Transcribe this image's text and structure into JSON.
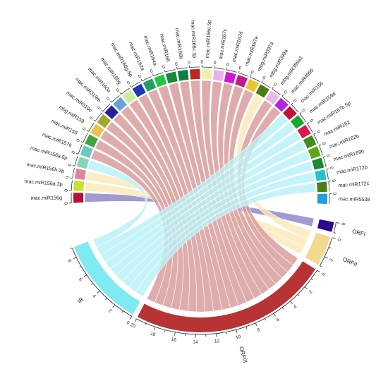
{
  "mirnas": [
    {
      "name": "mac.miR156g",
      "color": "#b51030"
    },
    {
      "name": "mac.miR156a.3p",
      "color": "#c9e033"
    },
    {
      "name": "mac.miR156h.3p",
      "color": "#e0849a"
    },
    {
      "name": "mac.miR156a.5p",
      "color": "#7fd9b7"
    },
    {
      "name": "mac.miR157b",
      "color": "#6fc6c6"
    },
    {
      "name": "mac.miR159",
      "color": "#3fa53f"
    },
    {
      "name": "mbg.miR159",
      "color": "#e8c44a"
    },
    {
      "name": "mac.miR319c",
      "color": "#9faa2c"
    },
    {
      "name": "mac.miR319m",
      "color": "#22229a"
    },
    {
      "name": "mac.miR160a",
      "color": "#6aa0d8"
    },
    {
      "name": "mac.miR160g",
      "color": "#c7ef9a"
    },
    {
      "name": "mac.miR160g.5p",
      "color": "#1f36b8"
    },
    {
      "name": "mac.miR162a",
      "color": "#22a060"
    },
    {
      "name": "mac.miR164a",
      "color": "#23c643"
    },
    {
      "name": "mac.miR166",
      "color": "#178a3a"
    },
    {
      "name": "mac.miR166b",
      "color": "#0e7f43"
    },
    {
      "name": "mac.miR166c.3p",
      "color": "#c0281c"
    },
    {
      "name": "mac.miR166c.5p",
      "color": "#eef2a8"
    },
    {
      "name": "mac.miR167c",
      "color": "#e8b0ee"
    },
    {
      "name": "mac.miR167d",
      "color": "#d415d4"
    },
    {
      "name": "mac.miR167e",
      "color": "#c21a8b"
    },
    {
      "name": "mbg.miR397a",
      "color": "#e8c82e"
    },
    {
      "name": "mbg.miR399a",
      "color": "#4a7d16"
    },
    {
      "name": "mbg.miR399a1",
      "color": "#e9b8f2"
    },
    {
      "name": "mac.miR4995",
      "color": "#b721e2"
    },
    {
      "name": "mac.miR156",
      "color": "#c21036"
    },
    {
      "name": "mac.miR156d",
      "color": "#18a830"
    },
    {
      "name": "mac.miR157b.5p",
      "color": "#e21253"
    },
    {
      "name": "mac.miR162",
      "color": "#3f8c23"
    },
    {
      "name": "mac.miR162b",
      "color": "#5ca818"
    },
    {
      "name": "mac.miR169h",
      "color": "#1a8a35"
    },
    {
      "name": "mac.miR172b",
      "color": "#26c2ce"
    },
    {
      "name": "mac.miR172c",
      "color": "#4e7e18"
    },
    {
      "name": "mac.miR5538",
      "color": "#249ce6"
    }
  ],
  "orfs": [
    {
      "name": "ORFI",
      "color": "#2a0a8a",
      "size": 1,
      "links_from": [
        0
      ]
    },
    {
      "name": "ORFII",
      "color": "#f2d98e",
      "size": 3,
      "links_from": [
        1,
        2,
        22
      ]
    },
    {
      "name": "ORFIII",
      "color": "#b83333",
      "size": 20,
      "links_from": [
        4,
        5,
        6,
        7,
        8,
        9,
        10,
        11,
        12,
        13,
        14,
        15,
        16,
        17,
        18,
        19,
        20,
        21,
        23,
        24
      ]
    },
    {
      "name": "IR",
      "color": "#7feaf2",
      "size": 9,
      "links_from": [
        3,
        25,
        26,
        27,
        28,
        29,
        30,
        31,
        32
      ]
    }
  ],
  "ribbon_colors": {
    "ORFI": "#8e84c6",
    "ORFII": "#fbe9bb",
    "ORFIII": "#d89a9a",
    "IR": "#b8f2f6"
  },
  "mirna_tick_label": "0"
}
